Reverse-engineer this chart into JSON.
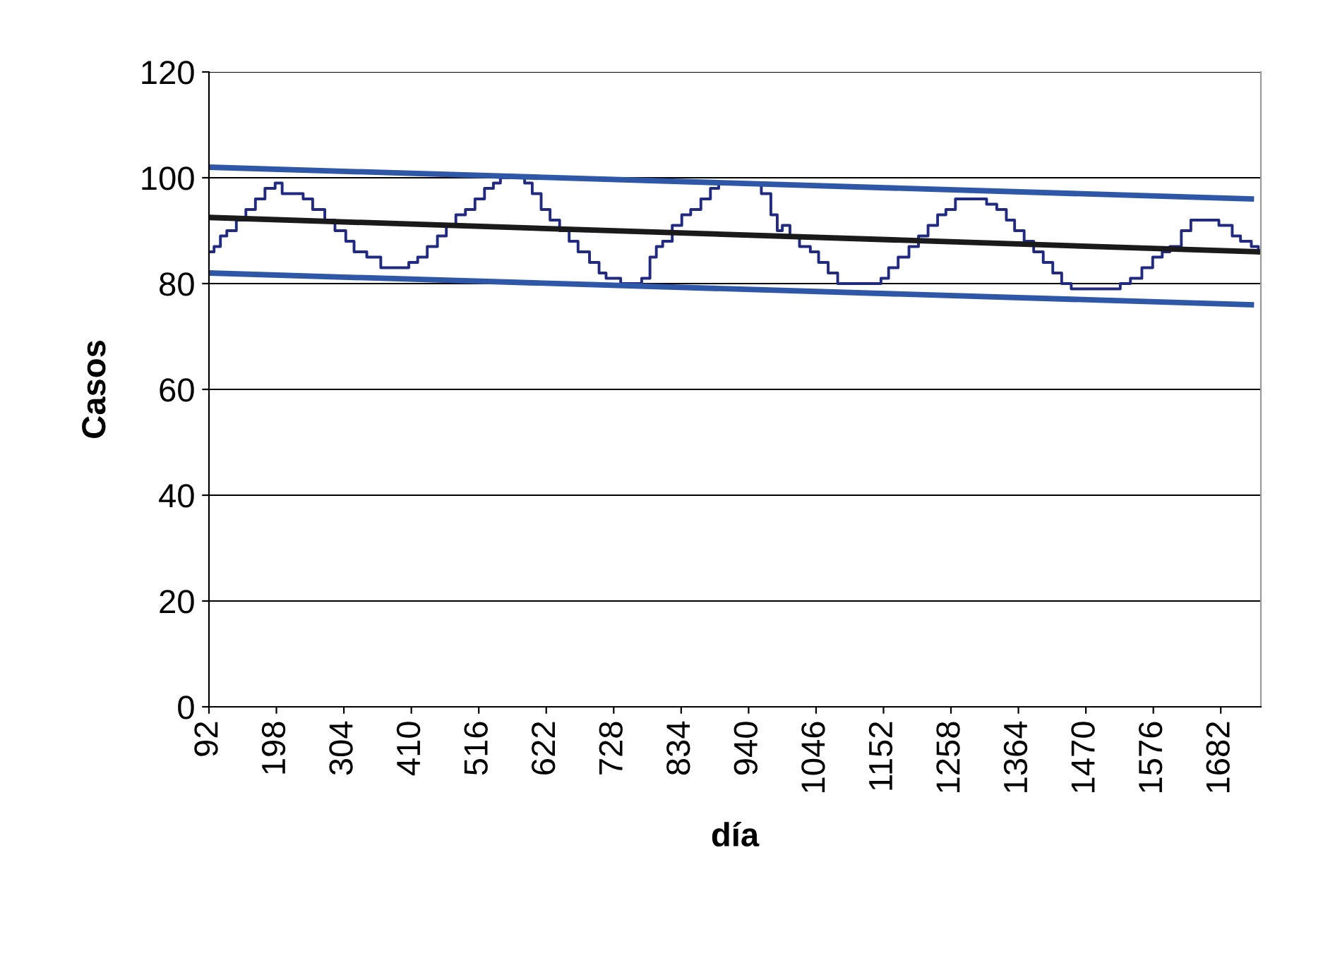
{
  "chart_data": {
    "type": "line",
    "xlabel": "día",
    "ylabel": "Casos",
    "xlim": [
      92,
      1745
    ],
    "xticks": [
      92,
      198,
      304,
      410,
      516,
      622,
      728,
      834,
      940,
      1046,
      1152,
      1258,
      1364,
      1470,
      1576,
      1682
    ],
    "ylim": [
      0,
      120
    ],
    "yticks": [
      0,
      20,
      40,
      60,
      80,
      100,
      120
    ],
    "grid": "y",
    "marker": "none",
    "line_style": "solid",
    "series": [
      {
        "type": "step",
        "color": "#1f2a80",
        "x": [
          92,
          100,
          110,
          120,
          135,
          150,
          165,
          180,
          196,
          207,
          240,
          255,
          274,
          290,
          307,
          320,
          340,
          362,
          406,
          420,
          435,
          451,
          465,
          480,
          495,
          510,
          525,
          539,
          550,
          588,
          600,
          614,
          628,
          643,
          658,
          672,
          690,
          705,
          716,
          739,
          772,
          785,
          795,
          805,
          820,
          835,
          849,
          865,
          880,
          893,
          960,
          975,
          985,
          993,
          1005,
          1020,
          1037,
          1050,
          1065,
          1080,
          1148,
          1160,
          1175,
          1192,
          1207,
          1222,
          1237,
          1250,
          1265,
          1314,
          1330,
          1345,
          1358,
          1373,
          1388,
          1403,
          1418,
          1432,
          1447,
          1524,
          1540,
          1558,
          1575,
          1590,
          1602,
          1620,
          1635,
          1679,
          1700,
          1713,
          1730,
          1741
        ],
        "values": [
          86,
          87,
          89,
          90,
          92,
          94,
          96,
          98,
          99,
          97,
          96,
          94,
          92,
          90,
          88,
          86,
          85,
          83,
          84,
          85,
          87,
          89,
          91,
          93,
          94,
          96,
          98,
          99,
          100,
          99,
          97,
          94,
          92,
          90,
          88,
          86,
          84,
          82,
          81,
          80,
          81,
          85,
          87,
          88,
          91,
          93,
          94,
          96,
          98,
          99,
          97,
          93,
          90,
          91,
          89,
          87,
          86,
          84,
          82,
          80,
          81,
          83,
          85,
          87,
          89,
          91,
          93,
          94,
          96,
          95,
          94,
          92,
          90,
          88,
          86,
          84,
          82,
          80,
          79,
          80,
          81,
          83,
          85,
          86,
          87,
          90,
          92,
          91,
          89,
          88,
          87,
          86
        ]
      },
      {
        "color": "#2e57a8",
        "x": [
          92,
          1730
        ],
        "values": [
          102,
          96
        ]
      },
      {
        "color": "#1a1a1a",
        "x": [
          92,
          1741
        ],
        "values": [
          92.5,
          86
        ]
      },
      {
        "color": "#2e57a8",
        "x": [
          92,
          1730
        ],
        "values": [
          82,
          76
        ]
      }
    ]
  }
}
